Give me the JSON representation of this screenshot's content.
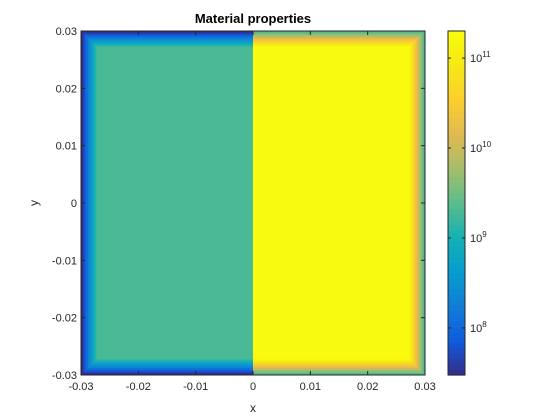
{
  "chart_data": {
    "type": "heatmap",
    "title": "Material properties",
    "xlabel": "x",
    "ylabel": "y",
    "xlim": [
      -0.03,
      0.03
    ],
    "ylim": [
      -0.03,
      0.03
    ],
    "x_ticks": [
      -0.03,
      -0.02,
      -0.01,
      0,
      0.01,
      0.02,
      0.03
    ],
    "x_tick_labels": [
      "-0.03",
      "-0.02",
      "-0.01",
      "0",
      "0.01",
      "0.02",
      "0.03"
    ],
    "y_ticks": [
      -0.03,
      -0.02,
      -0.01,
      0,
      0.01,
      0.02,
      0.03
    ],
    "y_tick_labels": [
      "-0.03",
      "-0.02",
      "-0.01",
      "0",
      "0.01",
      "0.02",
      "0.03"
    ],
    "colormap": "parula",
    "color_scale": "log",
    "clim": [
      30000000,
      200000000000
    ],
    "colorbar": {
      "position": "right",
      "ticks": [
        100000000,
        1000000000,
        10000000000,
        100000000000
      ],
      "tick_labels": [
        {
          "base": "10",
          "exp": "8"
        },
        {
          "base": "10",
          "exp": "9"
        },
        {
          "base": "10",
          "exp": "10"
        },
        {
          "base": "10",
          "exp": "11"
        }
      ]
    },
    "regions": [
      {
        "name": "left",
        "x_range": [
          -0.03,
          0
        ],
        "y_range": [
          -0.03,
          0.03
        ],
        "interior_value": 2000000000,
        "boundary_value": 30000000
      },
      {
        "name": "right",
        "x_range": [
          0,
          0.03
        ],
        "y_range": [
          -0.03,
          0.03
        ],
        "interior_value": 200000000000,
        "boundary_value": 2000000000
      }
    ],
    "boundary_layer_width": 0.003
  }
}
